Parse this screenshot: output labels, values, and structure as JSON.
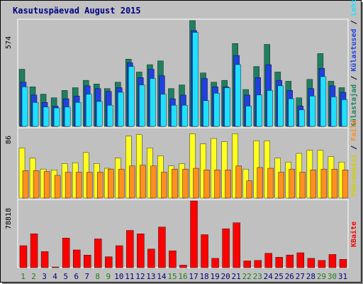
{
  "title": "Kasutuspäevad August 2015",
  "colors": {
    "visitors": "#1e8060",
    "visits": "#2040e0",
    "pages": "#20e0ff",
    "hits": "#ffff20",
    "bandwidth": "#ff0000",
    "files": "#ff9020",
    "weekday_label": "#006030",
    "weekend_label": "#208020"
  },
  "legend": {
    "top": [
      {
        "label": "Külastajad",
        "color": "#1e8060"
      },
      {
        "label": " / ",
        "color": "#000000"
      },
      {
        "label": "Külastused",
        "color": "#2040e0"
      },
      {
        "label": " / ",
        "color": "#000000"
      },
      {
        "label": "Lehti",
        "color": "#20e0ff"
      }
    ],
    "middle": [
      {
        "label": "Pöördumisi",
        "color": "#d0d000"
      },
      {
        "label": " / ",
        "color": "#000000"
      },
      {
        "label": "Faile",
        "color": "#ff9020"
      }
    ],
    "bottom": [
      {
        "label": "KBaite",
        "color": "#ff0000"
      }
    ]
  },
  "chart_data": {
    "type": "bar",
    "categories": [
      "1",
      "2",
      "3",
      "4",
      "5",
      "6",
      "7",
      "8",
      "9",
      "10",
      "11",
      "12",
      "13",
      "14",
      "15",
      "16",
      "17",
      "18",
      "19",
      "20",
      "21",
      "22",
      "23",
      "24",
      "25",
      "26",
      "27",
      "28",
      "29",
      "30",
      "31"
    ],
    "weekend_days": [
      "1",
      "2",
      "8",
      "9",
      "15",
      "16",
      "22",
      "23",
      "29",
      "30"
    ],
    "panels": [
      {
        "name": "top",
        "ymax_label": "574",
        "ymax": 574,
        "series": [
          {
            "name": "Külastajad",
            "color": "#1e8060",
            "values": [
              310,
              215,
              175,
              155,
              195,
              210,
              250,
              230,
              205,
              240,
              365,
              295,
              335,
              355,
              205,
              225,
              574,
              290,
              240,
              250,
              450,
              200,
              325,
              445,
              295,
              245,
              155,
              255,
              395,
              245,
              210
            ]
          },
          {
            "name": "Külastused",
            "color": "#2040e0",
            "values": [
              240,
              170,
              130,
              110,
              150,
              165,
              220,
              205,
              190,
              210,
              345,
              265,
              310,
              275,
              150,
              170,
              520,
              260,
              215,
              215,
              385,
              170,
              265,
              335,
              250,
              195,
              110,
              205,
              315,
              220,
              185
            ]
          },
          {
            "name": "Lehti",
            "color": "#20e0ff",
            "values": [
              215,
              130,
              105,
              100,
              105,
              130,
              175,
              135,
              115,
              185,
              325,
              225,
              260,
              175,
              115,
              115,
              510,
              140,
              180,
              210,
              335,
              110,
              170,
              195,
              220,
              150,
              90,
              165,
              270,
              160,
              145
            ]
          }
        ]
      },
      {
        "name": "middle",
        "ymax_label": "86",
        "ymax": 86,
        "series": [
          {
            "name": "Pöördumisi",
            "color": "#ffff20",
            "values": [
              64,
              51,
              37,
              36,
              44,
              45,
              58,
              44,
              38,
              51,
              79,
              81,
              64,
              54,
              41,
              44,
              82,
              69,
              76,
              72,
              82,
              37,
              73,
              73,
              51,
              46,
              57,
              61,
              61,
              53,
              46
            ]
          },
          {
            "name": "Faile",
            "color": "#ff9020",
            "values": [
              35,
              35,
              34,
              29,
              33,
              33,
              33,
              33,
              37,
              37,
              41,
              42,
              41,
              33,
              37,
              37,
              38,
              36,
              36,
              36,
              41,
              22,
              39,
              38,
              33,
              37,
              33,
              36,
              37,
              37,
              36
            ]
          }
        ]
      },
      {
        "name": "bottom",
        "ymax_label": "78818",
        "ymax": 78818,
        "series": [
          {
            "name": "KBaite",
            "color": "#ff0000",
            "values": [
              26000,
              40000,
              19000,
              500,
              35000,
              21000,
              14900,
              34000,
              12900,
              26000,
              44000,
              40000,
              22000,
              48000,
              20000,
              3000,
              78818,
              39000,
              11000,
              46000,
              53000,
              8000,
              8600,
              17000,
              12400,
              15000,
              17600,
              11000,
              8600,
              15600,
              9800
            ]
          }
        ]
      }
    ]
  }
}
